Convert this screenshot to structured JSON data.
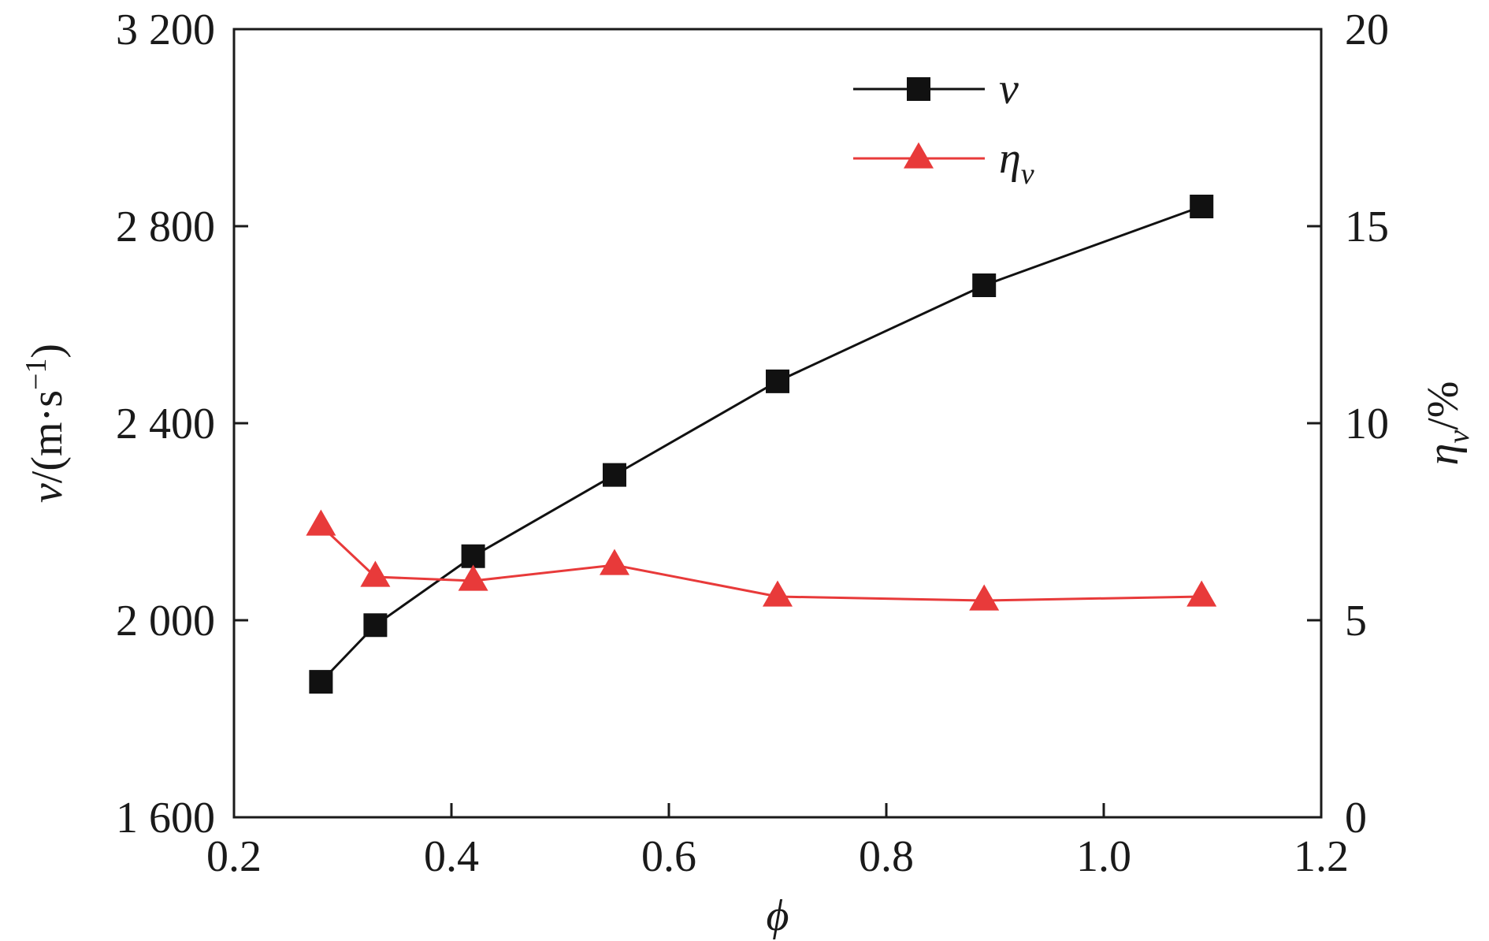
{
  "chart_data": {
    "type": "line",
    "xlabel": "ϕ",
    "ylabel_left": {
      "main": "v",
      "rest": "/(m·s",
      "sup": "−1",
      "close": ")"
    },
    "ylabel_right": {
      "main": "η",
      "sub": "v",
      "rest": "/%"
    },
    "xlim": [
      0.2,
      1.2
    ],
    "ylim_left": [
      1600,
      3200
    ],
    "ylim_right": [
      0,
      20
    ],
    "x_ticks": [
      0.2,
      0.4,
      0.6,
      0.8,
      1.0,
      1.2
    ],
    "x_tick_labels": [
      "0.2",
      "0.4",
      "0.6",
      "0.8",
      "1.0",
      "1.2"
    ],
    "y_left_ticks": [
      1600,
      2000,
      2400,
      2800,
      3200
    ],
    "y_left_tick_labels": [
      "1 600",
      "2 000",
      "2 400",
      "2 800",
      "3 200"
    ],
    "y_right_ticks": [
      0,
      5,
      10,
      15,
      20
    ],
    "y_right_tick_labels": [
      "0",
      "5",
      "10",
      "15",
      "20"
    ],
    "grid": false,
    "legend_position": "top-right",
    "series": [
      {
        "name": "v",
        "name_sub": "",
        "axis": "left",
        "color": "#111111",
        "marker": "square",
        "x": [
          0.28,
          0.33,
          0.42,
          0.55,
          0.7,
          0.89,
          1.09
        ],
        "y": [
          1875,
          1990,
          2130,
          2295,
          2485,
          2680,
          2840
        ]
      },
      {
        "name": "η",
        "name_sub": "v",
        "axis": "right",
        "color": "#e83a3a",
        "marker": "triangle",
        "x": [
          0.28,
          0.33,
          0.42,
          0.55,
          0.7,
          0.89,
          1.09
        ],
        "y": [
          7.4,
          6.1,
          6.0,
          6.4,
          5.6,
          5.5,
          5.6
        ]
      }
    ]
  }
}
